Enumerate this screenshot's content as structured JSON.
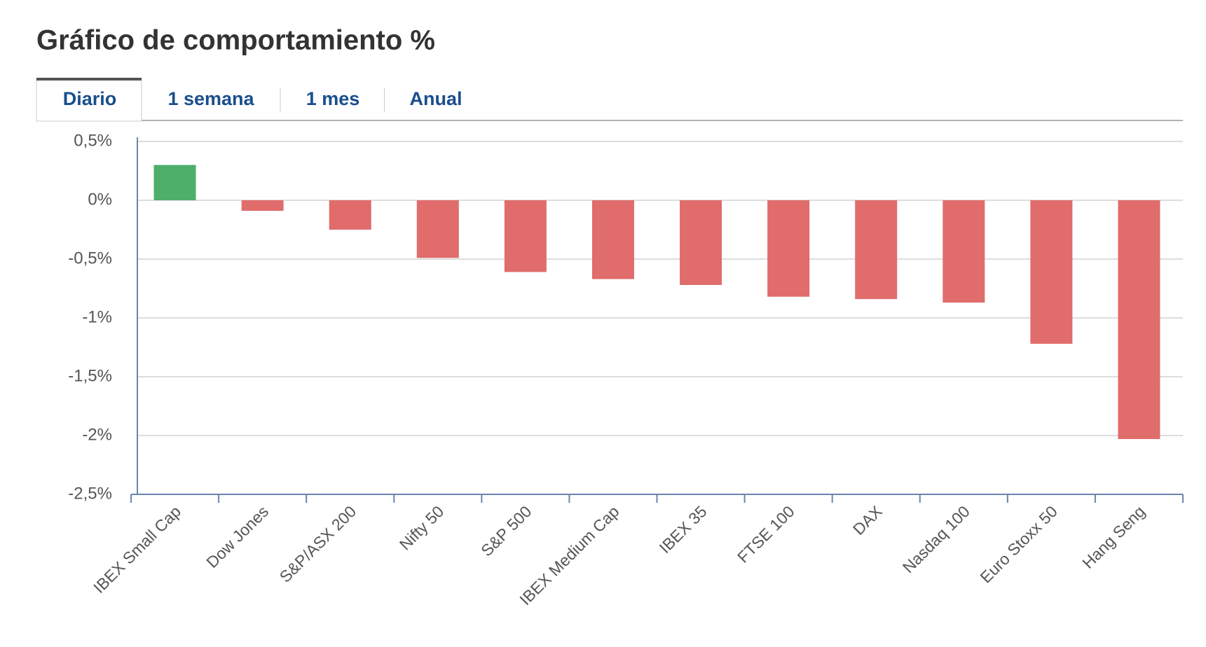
{
  "tabs": [
    "Diario",
    "1 semana",
    "1 mes",
    "Anual"
  ],
  "active_tab": 0,
  "chart_data": {
    "type": "bar",
    "title": "Gráfico de comportamiento %",
    "categories": [
      "IBEX Small Cap",
      "Dow Jones",
      "S&P/ASX 200",
      "Nifty 50",
      "S&P 500",
      "IBEX Medium Cap",
      "IBEX 35",
      "FTSE 100",
      "DAX",
      "Nasdaq 100",
      "Euro Stoxx 50",
      "Hang Seng"
    ],
    "values": [
      0.3,
      -0.09,
      -0.25,
      -0.49,
      -0.61,
      -0.67,
      -0.72,
      -0.82,
      -0.84,
      -0.87,
      -1.22,
      -2.03
    ],
    "positive_color": "#4caf6a",
    "negative_color": "#e06c6c",
    "ylim": [
      -2.5,
      0.5
    ],
    "yticks": [
      {
        "value": 0.5,
        "label": "0,5%"
      },
      {
        "value": 0,
        "label": "0%"
      },
      {
        "value": -0.5,
        "label": "-0,5%"
      },
      {
        "value": -1,
        "label": "-1%"
      },
      {
        "value": -1.5,
        "label": "-1,5%"
      },
      {
        "value": -2,
        "label": "-2%"
      },
      {
        "value": -2.5,
        "label": "-2,5%"
      }
    ],
    "grid": true
  }
}
